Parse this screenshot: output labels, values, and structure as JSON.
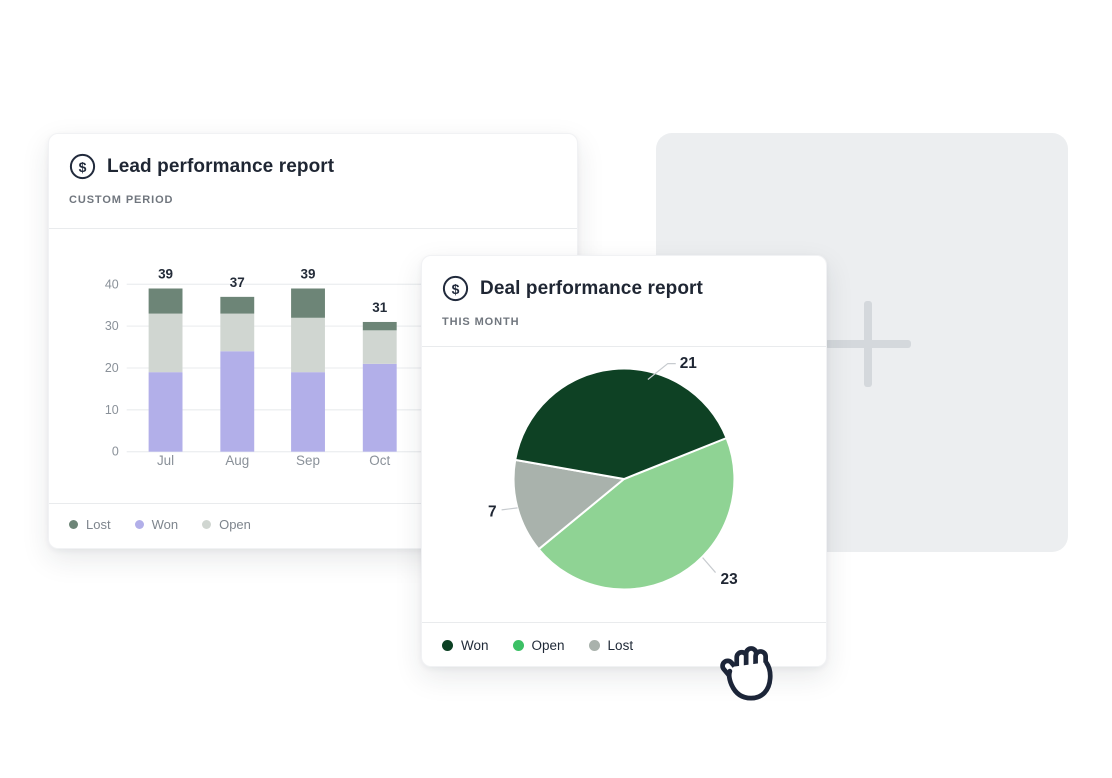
{
  "cards": {
    "lead": {
      "title": "Lead performance report",
      "subtitle": "CUSTOM PERIOD",
      "icon": "dollar-circle-icon",
      "icon_glyph": "$"
    },
    "deal": {
      "title": "Deal performance report",
      "subtitle": "THIS MONTH",
      "icon": "dollar-circle-icon",
      "icon_glyph": "$"
    },
    "placeholder": {
      "icon": "plus-icon"
    }
  },
  "cursor": {
    "icon": "grab-hand-icon"
  },
  "colors": {
    "card_bg": "#ffffff",
    "placeholder_bg": "#eceef0",
    "plus": "#d4d8dc",
    "title_text": "#1f2633",
    "subtitle_text": "#70767e",
    "axis_text": "#8a9199",
    "total_text": "#242c39",
    "gridline": "#edeff1",
    "divider": "#e9ebed",
    "hand_outline": "#1c2538"
  },
  "chart_data": [
    {
      "type": "bar",
      "stacked": true,
      "title": "Lead performance report",
      "period": "CUSTOM PERIOD",
      "categories": [
        "Jul",
        "Aug",
        "Sep",
        "Oct"
      ],
      "series": [
        {
          "name": "Won",
          "color": "#b2afe9",
          "values": [
            19,
            24,
            19,
            21
          ]
        },
        {
          "name": "Open",
          "color": "#d0d6d1",
          "values": [
            14,
            9,
            13,
            8
          ]
        },
        {
          "name": "Lost",
          "color": "#6d8577",
          "values": [
            6,
            4,
            7,
            2
          ]
        }
      ],
      "totals": [
        39,
        37,
        39,
        31
      ],
      "xlabel": "",
      "ylabel": "",
      "ylim": [
        0,
        40
      ],
      "yticks": [
        0,
        10,
        20,
        30,
        40
      ],
      "grid": true,
      "legend_position": "bottom",
      "legend": [
        {
          "label": "Lost",
          "color": "#6d8577"
        },
        {
          "label": "Won",
          "color": "#b2afe9"
        },
        {
          "label": "Open",
          "color": "#d0d6d1"
        }
      ]
    },
    {
      "type": "pie",
      "title": "Deal performance report",
      "period": "THIS MONTH",
      "slices": [
        {
          "label": "Won",
          "value": 21,
          "color": "#0e4124"
        },
        {
          "label": "Open",
          "value": 23,
          "color": "#8fd394"
        },
        {
          "label": "Lost",
          "value": 7,
          "color": "#a9b2ac"
        }
      ],
      "start_angle_deg": -21.8,
      "grid": false,
      "legend_position": "bottom",
      "legend": [
        {
          "label": "Won",
          "color": "#0c4023"
        },
        {
          "label": "Open",
          "color": "#3cc065"
        },
        {
          "label": "Lost",
          "color": "#a9b2ac"
        }
      ]
    }
  ]
}
